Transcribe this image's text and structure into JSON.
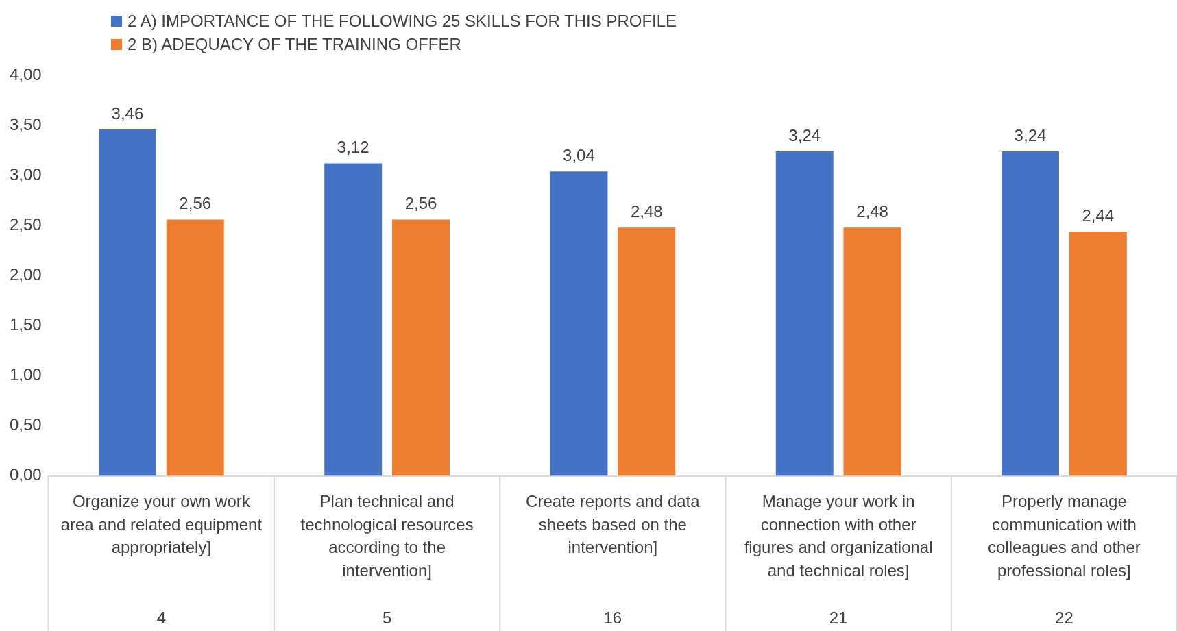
{
  "chart_data": {
    "type": "bar",
    "categories": [
      "Organize your own work area and related equipment appropriately]",
      "Plan technical and technological resources according to the intervention]",
      "Create reports and data sheets based on the intervention]",
      "Manage your work in connection with other figures and organizational and technical roles]",
      "Properly manage communication with colleagues and other professional roles]"
    ],
    "series": [
      {
        "name": "2 A) IMPORTANCE OF THE FOLLOWING 25 SKILLS FOR THIS PROFILE",
        "color": "#4472c4",
        "values": [
          3.46,
          3.12,
          3.04,
          3.24,
          3.24
        ],
        "value_labels": [
          "3,46",
          "3,12",
          "3,04",
          "3,24",
          "3,24"
        ]
      },
      {
        "name": "2 B) ADEQUACY OF THE TRAINING OFFER",
        "color": "#ed7d31",
        "values": [
          2.56,
          2.56,
          2.48,
          2.48,
          2.44
        ],
        "value_labels": [
          "2,56",
          "2,56",
          "2,48",
          "2,48",
          "2,44"
        ]
      }
    ],
    "ylim": [
      0,
      4
    ],
    "yticks": [
      {
        "value": 0,
        "label": "0,00"
      },
      {
        "value": 0.5,
        "label": "0,50"
      },
      {
        "value": 1,
        "label": "1,00"
      },
      {
        "value": 1.5,
        "label": "1,50"
      },
      {
        "value": 2,
        "label": "2,00"
      },
      {
        "value": 2.5,
        "label": "2,50"
      },
      {
        "value": 3,
        "label": "3,00"
      },
      {
        "value": 3.5,
        "label": "3,50"
      },
      {
        "value": 4,
        "label": "4,00"
      }
    ],
    "annotations": [
      "4",
      "5",
      "16",
      "21",
      "22"
    ],
    "grid": false,
    "legend": "top left"
  }
}
